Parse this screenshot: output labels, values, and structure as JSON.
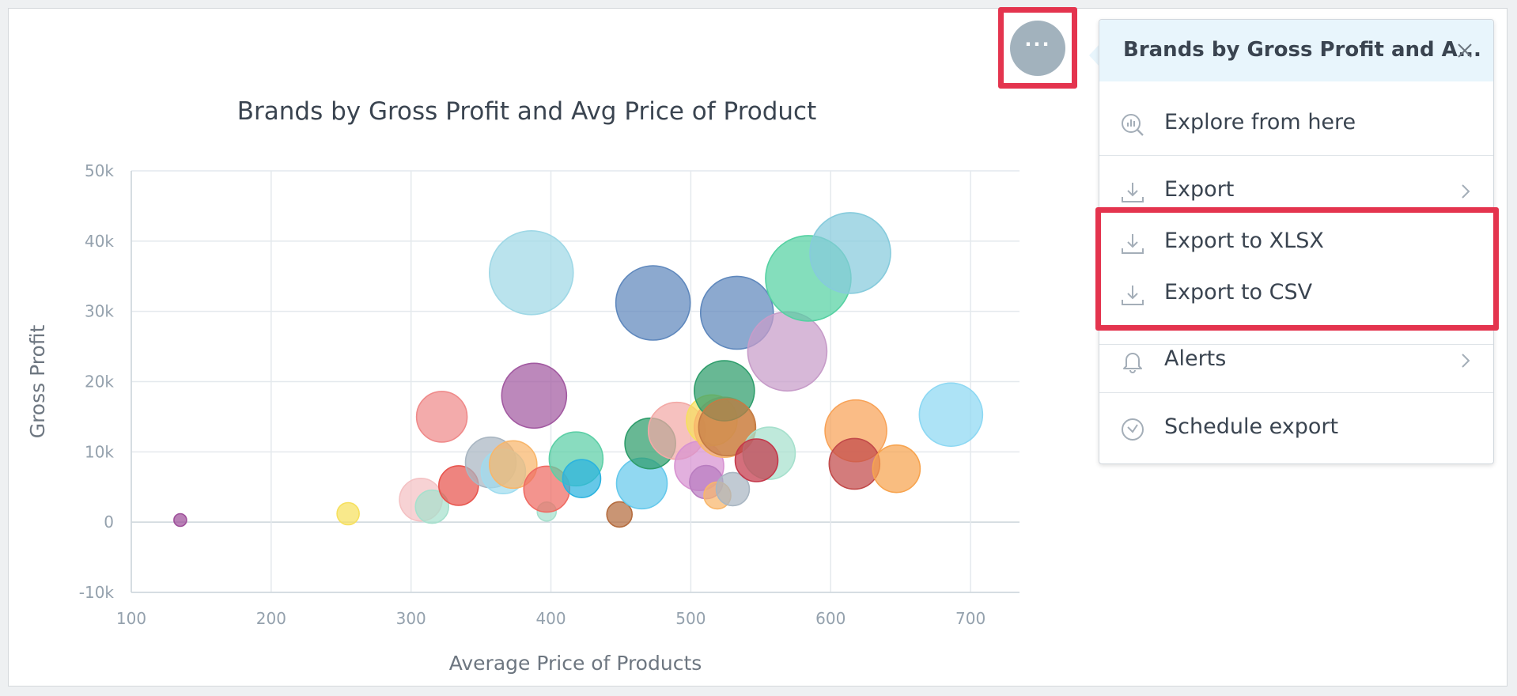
{
  "chart_data": {
    "type": "bubble",
    "title": "Brands by Gross Profit and Avg Price of Product",
    "xlabel": "Average Price of Products",
    "ylabel": "Gross Profit",
    "xlim": [
      100,
      735
    ],
    "ylim": [
      -10000,
      50000
    ],
    "x_ticks": [
      100,
      200,
      300,
      400,
      500,
      600,
      700
    ],
    "x_tick_labels": [
      "100",
      "200",
      "300",
      "400",
      "500",
      "600",
      "700"
    ],
    "y_ticks": [
      50000,
      40000,
      30000,
      20000,
      10000,
      0,
      -10000
    ],
    "y_tick_labels": [
      "50k",
      "40k",
      "30k",
      "20k",
      "10k",
      "0",
      "-10k"
    ],
    "grid": true,
    "points": [
      {
        "x": 135,
        "y": 300,
        "size": 8,
        "color": "#9e4f9a"
      },
      {
        "x": 255,
        "y": 1200,
        "size": 14,
        "color": "#f6e05e"
      },
      {
        "x": 307,
        "y": 3200,
        "size": 27,
        "color": "#f4c1c3"
      },
      {
        "x": 315,
        "y": 2200,
        "size": 21,
        "color": "#a6e0cd"
      },
      {
        "x": 322,
        "y": 15000,
        "size": 32,
        "color": "#ef8a8a"
      },
      {
        "x": 334,
        "y": 5200,
        "size": 25,
        "color": "#e8554e"
      },
      {
        "x": 357,
        "y": 8500,
        "size": 32,
        "color": "#a9b6c2"
      },
      {
        "x": 366,
        "y": 7200,
        "size": 28,
        "color": "#9fdcef"
      },
      {
        "x": 373,
        "y": 8200,
        "size": 30,
        "color": "#f8b66b"
      },
      {
        "x": 386,
        "y": 35500,
        "size": 53,
        "color": "#9fd8e6"
      },
      {
        "x": 388,
        "y": 18000,
        "size": 41,
        "color": "#a25aa1"
      },
      {
        "x": 397,
        "y": 1500,
        "size": 12,
        "color": "#a6e0cd"
      },
      {
        "x": 397,
        "y": 4700,
        "size": 29,
        "color": "#ef6b63"
      },
      {
        "x": 418,
        "y": 9000,
        "size": 34,
        "color": "#5ccfa6"
      },
      {
        "x": 422,
        "y": 6200,
        "size": 24,
        "color": "#2bb3df"
      },
      {
        "x": 449,
        "y": 1100,
        "size": 16,
        "color": "#b46c3e"
      },
      {
        "x": 465,
        "y": 5500,
        "size": 32,
        "color": "#66c9ec"
      },
      {
        "x": 473,
        "y": 31200,
        "size": 47,
        "color": "#5f88bd"
      },
      {
        "x": 471,
        "y": 11200,
        "size": 32,
        "color": "#2e9d6b"
      },
      {
        "x": 490,
        "y": 13000,
        "size": 36,
        "color": "#f3a9a6"
      },
      {
        "x": 506,
        "y": 8000,
        "size": 31,
        "color": "#d792d1"
      },
      {
        "x": 511,
        "y": 5700,
        "size": 21,
        "color": "#b97dc0"
      },
      {
        "x": 515,
        "y": 14500,
        "size": 32,
        "color": "#f6e05e"
      },
      {
        "x": 519,
        "y": 3800,
        "size": 17,
        "color": "#f8b66b"
      },
      {
        "x": 524,
        "y": 13500,
        "size": 38,
        "color": "#f8b66b"
      },
      {
        "x": 524,
        "y": 18700,
        "size": 38,
        "color": "#2e9d6b"
      },
      {
        "x": 526,
        "y": 13500,
        "size": 36,
        "color": "#c47b45"
      },
      {
        "x": 530,
        "y": 4700,
        "size": 21,
        "color": "#a9b6c2"
      },
      {
        "x": 533,
        "y": 29800,
        "size": 46,
        "color": "#5f88bd"
      },
      {
        "x": 556,
        "y": 9800,
        "size": 33,
        "color": "#a6e0cd"
      },
      {
        "x": 547,
        "y": 8800,
        "size": 27,
        "color": "#c4384a"
      },
      {
        "x": 569,
        "y": 24300,
        "size": 50,
        "color": "#c79cc9"
      },
      {
        "x": 584,
        "y": 34700,
        "size": 54,
        "color": "#55d1a2"
      },
      {
        "x": 614,
        "y": 38300,
        "size": 51,
        "color": "#86cbdc"
      },
      {
        "x": 618,
        "y": 13000,
        "size": 39,
        "color": "#f8a257"
      },
      {
        "x": 617,
        "y": 8300,
        "size": 32,
        "color": "#c24a4a"
      },
      {
        "x": 647,
        "y": 7600,
        "size": 30,
        "color": "#f7a44f"
      },
      {
        "x": 686,
        "y": 15300,
        "size": 40,
        "color": "#8dd8f3"
      }
    ]
  },
  "menu": {
    "title": "Brands by Gross Profit and A...",
    "items": [
      {
        "label": "Explore from here",
        "icon": "explore-chart-icon",
        "submenu": false
      },
      {
        "label": "Export",
        "icon": "download-icon",
        "submenu": true
      },
      {
        "label": "Export to XLSX",
        "icon": "download-icon",
        "submenu": false
      },
      {
        "label": "Export to CSV",
        "icon": "download-icon",
        "submenu": false
      },
      {
        "label": "Alerts",
        "icon": "bell-icon",
        "submenu": true
      },
      {
        "label": "Schedule export",
        "icon": "clock-icon",
        "submenu": false
      }
    ]
  },
  "options_button": {
    "label": "···",
    "icon": "more-options-icon"
  },
  "colors": {
    "highlight": "#e4344e",
    "menu_header_bg": "#e8f5fc",
    "button_bg": "#a2b2bd"
  }
}
